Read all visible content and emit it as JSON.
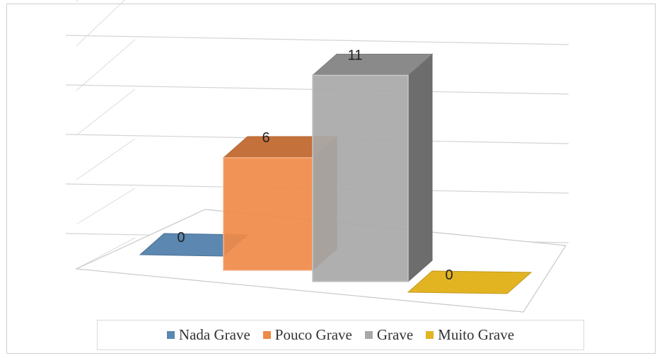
{
  "chart_data": {
    "type": "bar",
    "categories": [
      "Nada Grave",
      "Pouco Grave",
      "Grave",
      "Muito Grave"
    ],
    "values": [
      0,
      6,
      11,
      0
    ],
    "data_labels": [
      "0",
      "6",
      "11",
      "0"
    ],
    "ylim": [
      0,
      12
    ],
    "grid": true,
    "legend": "bottom",
    "colors": [
      "#5b87b0",
      "#f08a48",
      "#a8a8a8",
      "#e2b422"
    ]
  }
}
